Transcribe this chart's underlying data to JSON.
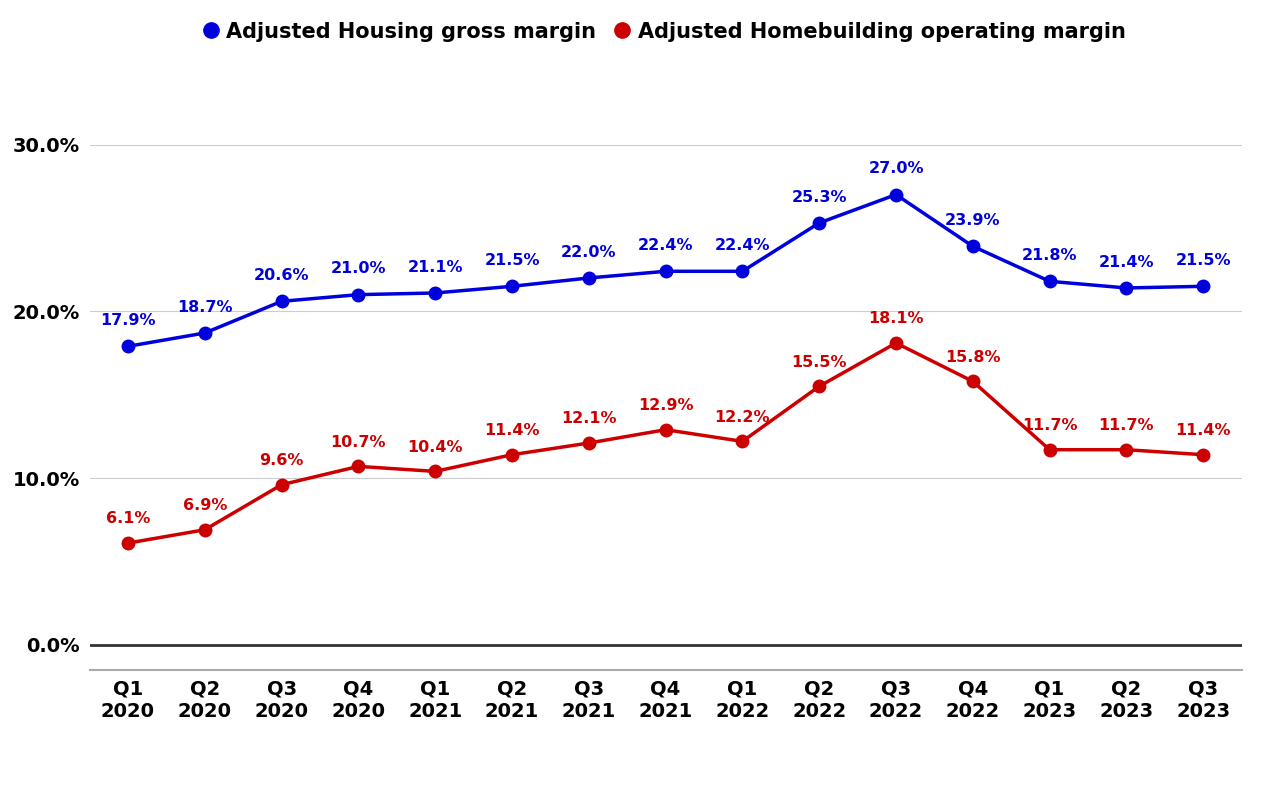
{
  "categories": [
    "Q1\n2020",
    "Q2\n2020",
    "Q3\n2020",
    "Q4\n2020",
    "Q1\n2021",
    "Q2\n2021",
    "Q3\n2021",
    "Q4\n2021",
    "Q1\n2022",
    "Q2\n2022",
    "Q3\n2022",
    "Q4\n2022",
    "Q1\n2023",
    "Q2\n2023",
    "Q3\n2023"
  ],
  "blue_values": [
    17.9,
    18.7,
    20.6,
    21.0,
    21.1,
    21.5,
    22.0,
    22.4,
    22.4,
    25.3,
    27.0,
    23.9,
    21.8,
    21.4,
    21.5
  ],
  "red_values": [
    6.1,
    6.9,
    9.6,
    10.7,
    10.4,
    11.4,
    12.1,
    12.9,
    12.2,
    15.5,
    18.1,
    15.8,
    11.7,
    11.7,
    11.4
  ],
  "blue_labels": [
    "17.9%",
    "18.7%",
    "20.6%",
    "21.0%",
    "21.1%",
    "21.5%",
    "22.0%",
    "22.4%",
    "22.4%",
    "25.3%",
    "27.0%",
    "23.9%",
    "21.8%",
    "21.4%",
    "21.5%"
  ],
  "red_labels": [
    "6.1%",
    "6.9%",
    "9.6%",
    "10.7%",
    "10.4%",
    "11.4%",
    "12.1%",
    "12.9%",
    "12.2%",
    "15.5%",
    "18.1%",
    "15.8%",
    "11.7%",
    "11.7%",
    "11.4%"
  ],
  "blue_color": "#0000dd",
  "red_color": "#cc0000",
  "legend_blue": "Adjusted Housing gross margin",
  "legend_red": "Adjusted Homebuilding operating margin",
  "yticks": [
    0.0,
    10.0,
    20.0,
    30.0
  ],
  "ylim": [
    -1.5,
    33
  ],
  "background_color": "#ffffff",
  "marker_size": 9,
  "line_width": 2.5,
  "label_fontsize": 11.5,
  "legend_fontsize": 15,
  "tick_fontsize": 14,
  "axes_label_color": "#000000"
}
